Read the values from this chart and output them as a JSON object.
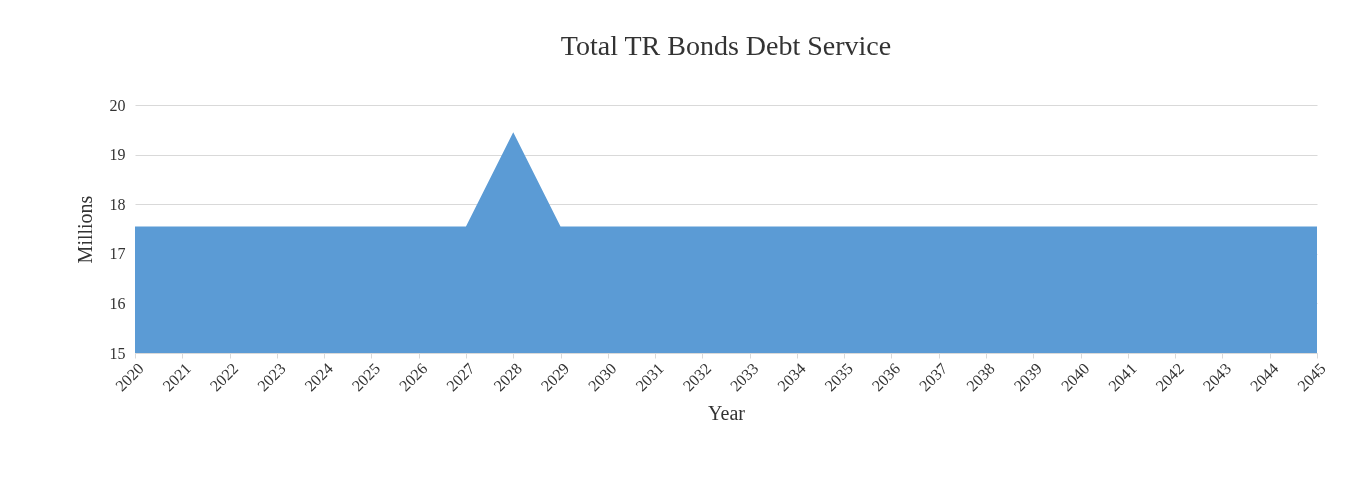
{
  "chart_data": {
    "type": "area",
    "title": "Total TR Bonds Debt Service",
    "xlabel": "Year",
    "ylabel": "Millions",
    "categories": [
      "2020",
      "2021",
      "2022",
      "2023",
      "2024",
      "2025",
      "2026",
      "2027",
      "2028",
      "2029",
      "2030",
      "2031",
      "2032",
      "2033",
      "2034",
      "2035",
      "2036",
      "2037",
      "2038",
      "2039",
      "2040",
      "2041",
      "2042",
      "2043",
      "2044",
      "2045"
    ],
    "series": [
      {
        "color": "#5b9bd5",
        "values": [
          17.55,
          17.55,
          17.55,
          17.55,
          17.55,
          17.55,
          17.55,
          17.55,
          19.45,
          17.55,
          17.55,
          17.55,
          17.55,
          17.55,
          17.55,
          17.55,
          17.55,
          17.55,
          17.55,
          17.55,
          17.55,
          17.55,
          17.55,
          17.55,
          17.55,
          17.55
        ]
      }
    ],
    "ylim": [
      15,
      20
    ],
    "yticks": [
      15,
      16,
      17,
      18,
      19,
      20
    ],
    "grid": "y"
  }
}
